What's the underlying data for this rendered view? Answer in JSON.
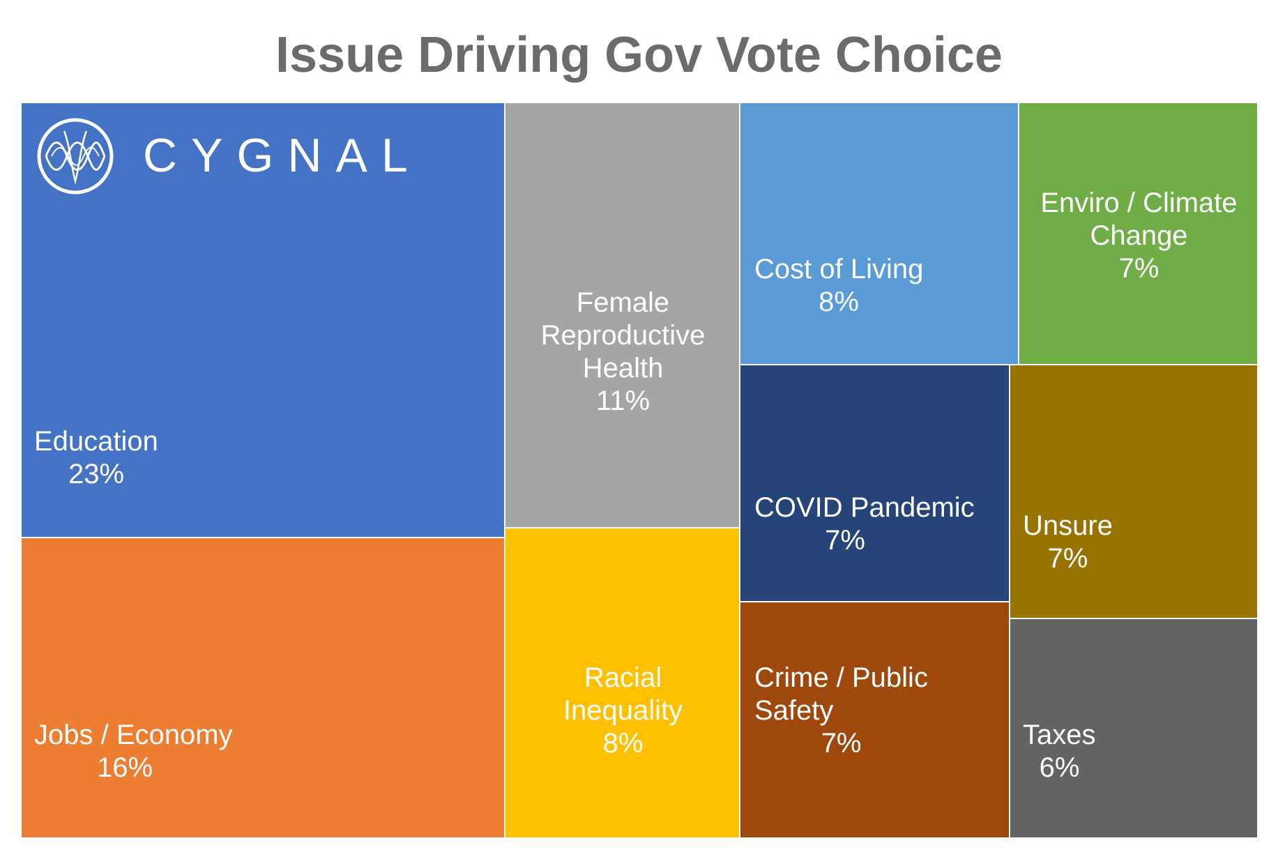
{
  "chart_data": {
    "type": "treemap",
    "title": "Issue Driving Gov Vote Choice",
    "items": [
      {
        "label": "Education",
        "value": 23,
        "display": "23%",
        "color": "#4472C4"
      },
      {
        "label": "Jobs / Economy",
        "value": 16,
        "display": "16%",
        "color": "#ED7D31"
      },
      {
        "label": "Female Reproductive Health",
        "value": 11,
        "display": "11%",
        "color": "#A5A5A5"
      },
      {
        "label": "Racial Inequality",
        "value": 8,
        "display": "8%",
        "color": "#FFC000"
      },
      {
        "label": "Cost of Living",
        "value": 8,
        "display": "8%",
        "color": "#5B9BD5"
      },
      {
        "label": "Enviro / Climate Change",
        "value": 7,
        "display": "7%",
        "color": "#70AD47"
      },
      {
        "label": "COVID Pandemic",
        "value": 7,
        "display": "7%",
        "color": "#264478"
      },
      {
        "label": "Unsure",
        "value": 7,
        "display": "7%",
        "color": "#997300"
      },
      {
        "label": "Crime / Public Safety",
        "value": 7,
        "display": "7%",
        "color": "#9E480E"
      },
      {
        "label": "Taxes",
        "value": 6,
        "display": "6%",
        "color": "#636363"
      }
    ]
  },
  "logo": {
    "text": "CYGNAL"
  }
}
